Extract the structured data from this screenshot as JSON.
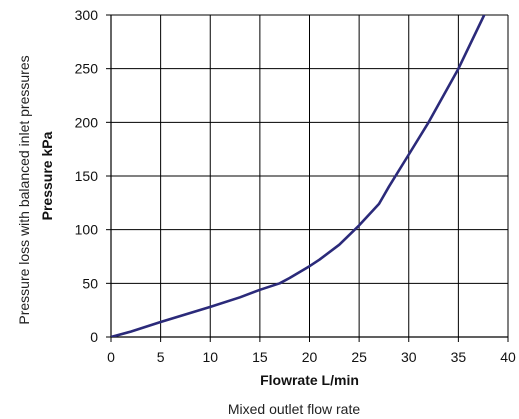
{
  "chart_data": {
    "type": "line",
    "title": "",
    "xlabel": "Flowrate L/min",
    "ylabel": "Pressure kPa",
    "outer_ylabel": "Pressure loss with balanced inlet pressures",
    "caption": "Mixed outlet flow rate",
    "xlim": [
      0,
      40
    ],
    "ylim": [
      0,
      300
    ],
    "xticks": [
      0,
      5,
      10,
      15,
      20,
      25,
      30,
      35,
      40
    ],
    "yticks": [
      0,
      50,
      100,
      150,
      200,
      250,
      300
    ],
    "grid": true,
    "line_color": "#2b2a7a",
    "series": [
      {
        "x": [
          0,
          2,
          5,
          10,
          13,
          15,
          17,
          18,
          20,
          21,
          23,
          25,
          27,
          28,
          30,
          32,
          35,
          37.6
        ],
        "y": [
          0,
          5,
          14,
          28,
          37,
          44,
          50,
          55,
          66,
          72,
          86,
          104,
          124,
          140,
          170,
          200,
          250,
          300
        ]
      }
    ]
  }
}
